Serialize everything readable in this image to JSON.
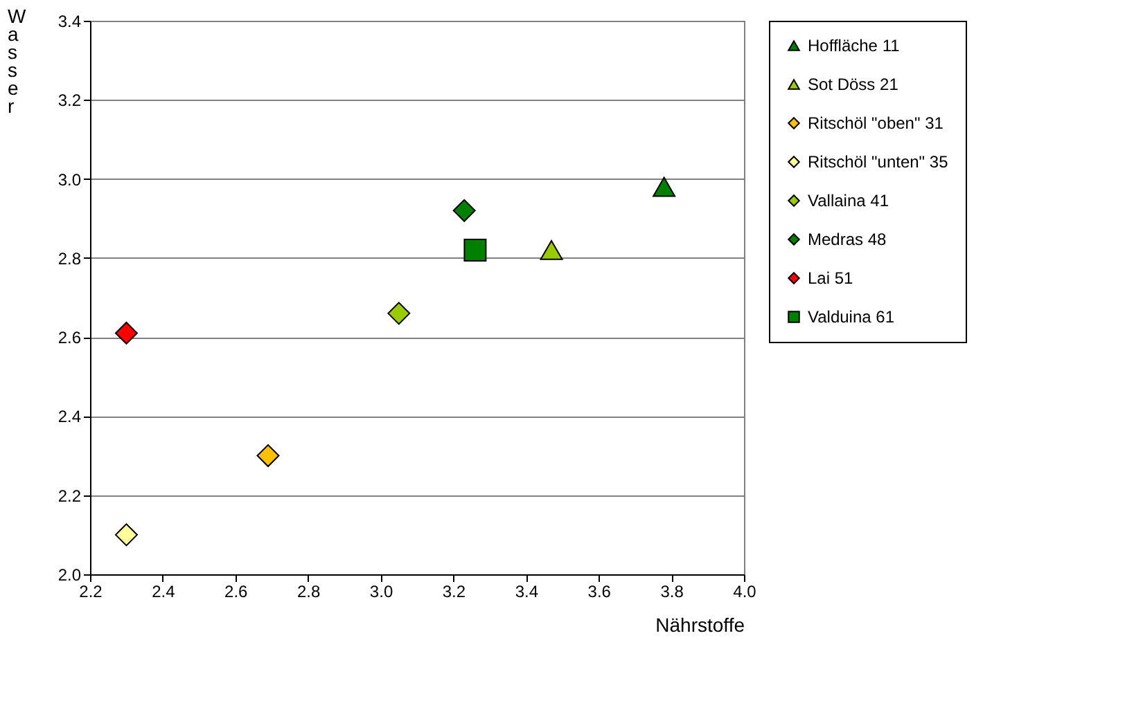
{
  "chart_data": {
    "type": "scatter",
    "xlabel": "Nährstoffe",
    "ylabel": "Wasser",
    "series": [
      {
        "name": "Hoffläche 11",
        "color": "#008000",
        "marker": "triangle",
        "x": [
          3.78
        ],
        "values": [
          2.98
        ]
      },
      {
        "name": "Sot Döss 21",
        "color": "#99cc00",
        "marker": "triangle",
        "x": [
          3.47
        ],
        "values": [
          2.82
        ]
      },
      {
        "name": "Ritschöl \"oben\" 31",
        "color": "#ffc000",
        "marker": "diamond",
        "x": [
          2.69
        ],
        "values": [
          2.3
        ]
      },
      {
        "name": "Ritschöl \"unten\" 35",
        "color": "#ffff99",
        "marker": "diamond",
        "x": [
          2.3
        ],
        "values": [
          2.1
        ]
      },
      {
        "name": "Vallaina 41",
        "color": "#99cc00",
        "marker": "diamond",
        "x": [
          3.05
        ],
        "values": [
          2.66
        ]
      },
      {
        "name": "Medras 48",
        "color": "#008000",
        "marker": "diamond",
        "x": [
          3.23
        ],
        "values": [
          2.92
        ]
      },
      {
        "name": "Lai 51",
        "color": "#ff0000",
        "marker": "diamond",
        "x": [
          2.3
        ],
        "values": [
          2.61
        ]
      },
      {
        "name": "Valduina 61",
        "color": "#008000",
        "marker": "square",
        "x": [
          3.26
        ],
        "values": [
          2.82
        ]
      }
    ],
    "xlim": [
      2.2,
      4.0
    ],
    "ylim": [
      2.0,
      3.4
    ],
    "xticks": [
      2.2,
      2.4,
      2.6,
      2.8,
      {
        "value": 3,
        "label": "3.0"
      },
      3.2,
      3.4,
      3.6,
      3.8,
      {
        "value": 4,
        "label": "4.0"
      }
    ],
    "yticks": [
      {
        "value": 2,
        "label": "2.0"
      },
      2.2,
      2.4,
      2.6,
      2.8,
      {
        "value": 3,
        "label": "3.0"
      },
      3.2,
      3.4
    ],
    "grid": "y",
    "legend": "right"
  }
}
